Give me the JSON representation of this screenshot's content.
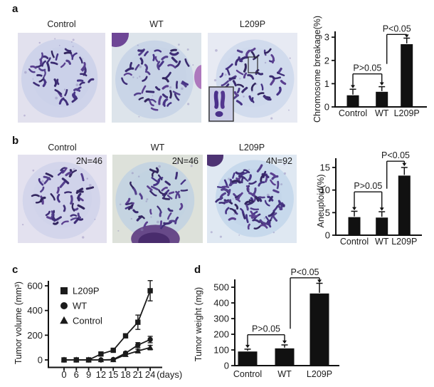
{
  "figure": {
    "panels": {
      "a": {
        "label": "a",
        "images": [
          {
            "title": "Control"
          },
          {
            "title": "WT"
          },
          {
            "title": "L209P"
          }
        ]
      },
      "b": {
        "label": "b",
        "images": [
          {
            "title": "Control",
            "overlay": "2N=46"
          },
          {
            "title": "WT",
            "overlay": "2N=46"
          },
          {
            "title": "L209P",
            "overlay": "4N=92"
          }
        ]
      },
      "c": {
        "label": "c"
      },
      "d": {
        "label": "d"
      }
    }
  },
  "chart_data": [
    {
      "id": "chromosome-breakage",
      "type": "bar",
      "categories": [
        "Control",
        "WT",
        "L209P"
      ],
      "values": [
        0.5,
        0.65,
        2.7
      ],
      "errors": [
        0.26,
        0.22,
        0.26
      ],
      "ylabel": "Chromosome breakage(%)",
      "yticks": [
        0,
        1,
        2,
        3
      ],
      "ylim": [
        0,
        3.3
      ],
      "annotations": [
        {
          "label": "P>0.05",
          "kind": "bracket",
          "from": 0,
          "to": 1,
          "level": 1.42,
          "tips": [
            0.8,
            0.92
          ]
        },
        {
          "label": "P<0.05",
          "kind": "step",
          "from": 1,
          "to": 2,
          "level": 3.12,
          "left_drop": 1.85,
          "tip": 2.98
        }
      ]
    },
    {
      "id": "aneuploid",
      "type": "bar",
      "categories": [
        "Control",
        "WT",
        "L209P"
      ],
      "values": [
        4.0,
        3.9,
        13.2
      ],
      "errors": [
        1.3,
        1.3,
        1.8
      ],
      "ylabel": "Aneuploid(%)",
      "yticks": [
        0,
        5,
        10,
        15
      ],
      "ylim": [
        0,
        17
      ],
      "annotations": [
        {
          "label": "P>0.05",
          "kind": "bracket",
          "from": 0,
          "to": 1,
          "level": 9.6,
          "tips": [
            5.5,
            5.4
          ]
        },
        {
          "label": "P<0.05",
          "kind": "step",
          "from": 1,
          "to": 2,
          "level": 16.4,
          "left_drop": 10.3,
          "tip": 15.3
        }
      ]
    },
    {
      "id": "tumor-volume",
      "type": "line",
      "x": [
        0,
        6,
        9,
        12,
        15,
        18,
        21,
        24
      ],
      "xlabel": "(days)",
      "ylabel": "Tumor volume (mm³)",
      "yticks": [
        0,
        200,
        400,
        600
      ],
      "ylim": [
        0,
        660
      ],
      "legend_position": "upper-left",
      "series": [
        {
          "name": "L209P",
          "marker": "square",
          "values": [
            0,
            0,
            0,
            48,
            78,
            195,
            305,
            560
          ],
          "errors": [
            0,
            0,
            0,
            8,
            10,
            15,
            58,
            82
          ]
        },
        {
          "name": "WT",
          "marker": "circle",
          "values": [
            0,
            0,
            0,
            0,
            3,
            55,
            120,
            165
          ],
          "errors": [
            0,
            0,
            0,
            0,
            0,
            10,
            20,
            26
          ]
        },
        {
          "name": "Control",
          "marker": "triangle",
          "values": [
            0,
            0,
            0,
            0,
            0,
            42,
            72,
            100
          ],
          "errors": [
            0,
            0,
            0,
            0,
            0,
            10,
            15,
            18
          ]
        }
      ]
    },
    {
      "id": "tumor-weight",
      "type": "bar",
      "categories": [
        "Control",
        "WT",
        "L209P"
      ],
      "values": [
        90,
        110,
        460
      ],
      "errors": [
        15,
        22,
        65
      ],
      "ylabel": "Tumor weight (mg)",
      "yticks": [
        0,
        100,
        200,
        300,
        400,
        500
      ],
      "ylim": [
        0,
        580
      ],
      "annotations": [
        {
          "label": "P>0.05",
          "kind": "bracket",
          "from": 0,
          "to": 1,
          "level": 197,
          "tips": [
            112,
            140
          ]
        },
        {
          "label": "P<0.05",
          "kind": "step",
          "from": 1,
          "to": 2,
          "level": 560,
          "left_drop": 235,
          "tip": 528
        }
      ]
    }
  ]
}
